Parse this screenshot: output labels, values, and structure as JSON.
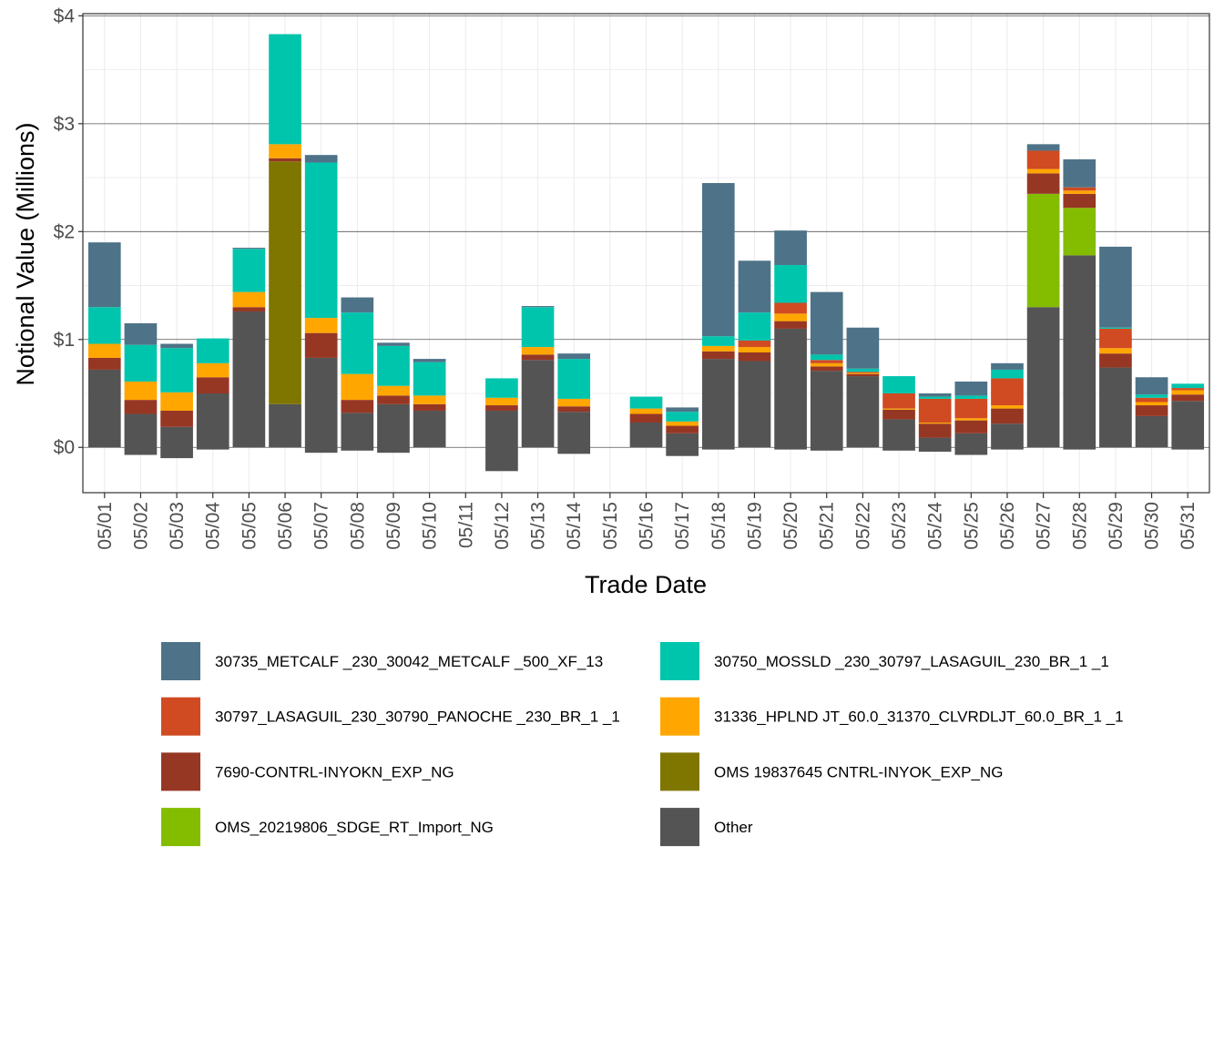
{
  "chart_data": {
    "type": "bar",
    "stacked": true,
    "title": "",
    "xlabel": "Trade Date",
    "ylabel": "Notional Value (Millions)",
    "ylim": [
      -0.42,
      4.02
    ],
    "y_ticks": [
      0,
      1,
      2,
      3,
      4
    ],
    "y_tick_labels": [
      "$0",
      "$1",
      "$2",
      "$3",
      "$4"
    ],
    "grid": true,
    "legend_position": "bottom",
    "categories": [
      "05/01",
      "05/02",
      "05/03",
      "05/04",
      "05/05",
      "05/06",
      "05/07",
      "05/08",
      "05/09",
      "05/10",
      "05/11",
      "05/12",
      "05/13",
      "05/14",
      "05/15",
      "05/16",
      "05/17",
      "05/18",
      "05/19",
      "05/20",
      "05/21",
      "05/22",
      "05/23",
      "05/24",
      "05/25",
      "05/26",
      "05/27",
      "05/28",
      "05/29",
      "05/30",
      "05/31"
    ],
    "series": [
      {
        "name": "30735_METCALF _230_30042_METCALF _500_XF_13",
        "color": "#4e7388",
        "values": [
          0.6,
          0.2,
          0.04,
          0,
          0.01,
          0,
          0.07,
          0.14,
          0.03,
          0.03,
          0,
          0,
          0.01,
          0.05,
          0,
          0,
          0.04,
          1.42,
          0.48,
          0.32,
          0.58,
          0.38,
          0,
          0.03,
          0.13,
          0.06,
          0.06,
          0.26,
          0.75,
          0.16,
          0
        ]
      },
      {
        "name": "30750_MOSSLD  _230_30797_LASAGUIL_230_BR_1 _1",
        "color": "#00c5ad",
        "values": [
          0.34,
          0.34,
          0.41,
          0.23,
          0.4,
          1.02,
          1.44,
          0.57,
          0.37,
          0.31,
          0,
          0.18,
          0.37,
          0.37,
          0,
          0.11,
          0.09,
          0.09,
          0.26,
          0.35,
          0.05,
          0.03,
          0.16,
          0.02,
          0.03,
          0.08,
          0,
          0,
          0.01,
          0.03,
          0.04
        ]
      },
      {
        "name": "30797_LASAGUIL_230_30790_PANOCHE _230_BR_1 _1",
        "color": "#d04a22",
        "values": [
          0,
          0,
          0,
          0,
          0,
          0,
          0,
          0,
          0,
          0,
          0,
          0,
          0,
          0,
          0,
          0,
          0,
          0,
          0.06,
          0.1,
          0.03,
          0.01,
          0.14,
          0.22,
          0.18,
          0.25,
          0.17,
          0.03,
          0.18,
          0.04,
          0.02
        ]
      },
      {
        "name": "31336_HPLND JT_60.0_31370_CLVRDLJT_60.0_BR_1 _1",
        "color": "#ffa600",
        "values": [
          0.13,
          0.17,
          0.17,
          0.13,
          0.14,
          0.13,
          0.14,
          0.24,
          0.09,
          0.08,
          0,
          0.07,
          0.07,
          0.07,
          0,
          0.05,
          0.04,
          0.05,
          0.05,
          0.07,
          0.03,
          0.01,
          0.01,
          0.01,
          0.02,
          0.03,
          0.04,
          0.03,
          0.05,
          0.03,
          0.04
        ]
      },
      {
        "name": "7690-CONTRL-INYOKN_EXP_NG",
        "color": "#963724",
        "values": [
          0.11,
          0.13,
          0.15,
          0.15,
          0.04,
          0.03,
          0.23,
          0.12,
          0.08,
          0.06,
          0,
          0.05,
          0.05,
          0.05,
          0,
          0.08,
          0.07,
          0.07,
          0.08,
          0.07,
          0.04,
          0.02,
          0.09,
          0.13,
          0.12,
          0.14,
          0.19,
          0.13,
          0.13,
          0.1,
          0.06
        ]
      },
      {
        "name": "OMS 19837645 CNTRL-INYOK_EXP_NG",
        "color": "#7f7600",
        "values": [
          0,
          0,
          0,
          0,
          0,
          2.25,
          0,
          0,
          0,
          0,
          0,
          0,
          0,
          0,
          0,
          0,
          0,
          0,
          0,
          0,
          0,
          0,
          0,
          0,
          0,
          0,
          0,
          0,
          0,
          0,
          0
        ]
      },
      {
        "name": "OMS_20219806_SDGE_RT_Import_NG",
        "color": "#84bd00",
        "values": [
          0,
          0,
          0,
          0,
          0,
          0,
          0,
          0,
          0,
          0,
          0,
          0,
          0,
          0,
          0,
          0,
          0,
          0,
          0,
          0,
          0,
          0,
          0,
          0,
          0,
          0,
          1.05,
          0.44,
          0,
          0,
          0
        ]
      },
      {
        "name": "Other",
        "color": "#545454",
        "values": [
          0.72,
          0.31,
          0.19,
          0.5,
          1.26,
          0.4,
          0.83,
          0.32,
          0.4,
          0.34,
          0,
          0.34,
          0.81,
          0.33,
          0,
          0.23,
          0.13,
          0.82,
          0.8,
          1.1,
          0.71,
          0.66,
          0.26,
          0.09,
          0.13,
          0.22,
          1.3,
          1.78,
          0.74,
          0.29,
          0.43
        ]
      }
    ],
    "negative": [
      0,
      -0.07,
      -0.1,
      -0.02,
      0,
      0,
      -0.05,
      -0.03,
      -0.05,
      0,
      0,
      -0.22,
      0,
      -0.06,
      0,
      0,
      -0.08,
      -0.02,
      0,
      -0.02,
      -0.03,
      0,
      -0.03,
      -0.04,
      -0.07,
      -0.02,
      0,
      -0.02,
      0,
      0,
      -0.02
    ]
  }
}
